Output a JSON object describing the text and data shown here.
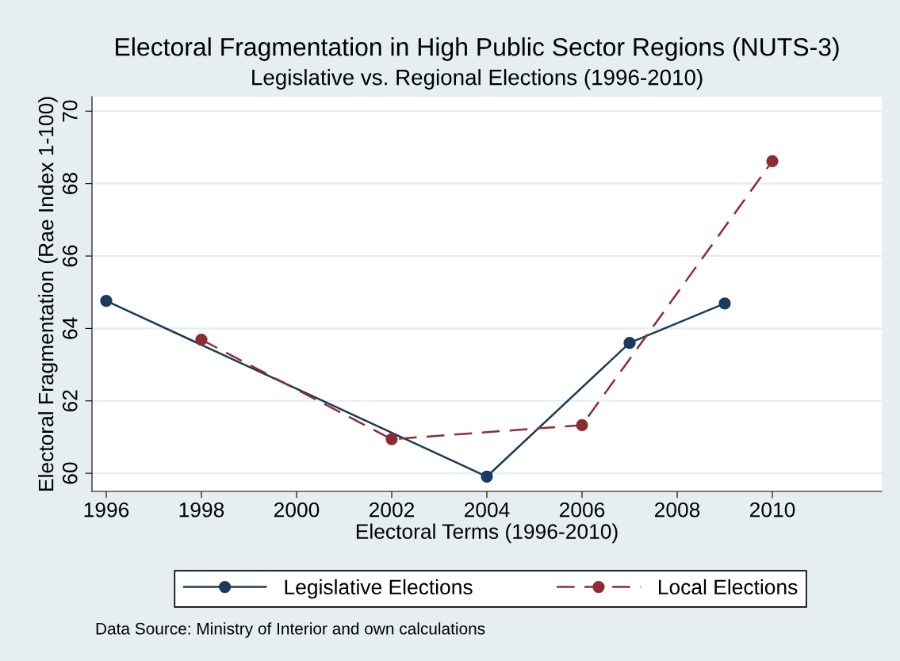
{
  "chart_data": {
    "type": "line",
    "title": "Electoral Fragmentation in High Public Sector Regions (NUTS-3)",
    "subtitle": "Legislative vs. Regional Elections (1996-2010)",
    "xlabel": "Electoral Terms (1996-2010)",
    "ylabel": "Electoral Fragmentation (Rae Index 1-100)",
    "series": [
      {
        "name": "Legislative Elections",
        "color": "#1a3a5e",
        "line_style": "solid",
        "x": [
          1996,
          2004,
          2007,
          2009
        ],
        "values": [
          64.76,
          59.91,
          63.6,
          64.69
        ]
      },
      {
        "name": "Local Elections",
        "color": "#8c2d33",
        "line_style": "dashed",
        "x": [
          1998,
          2002,
          2006,
          2010
        ],
        "values": [
          63.69,
          60.94,
          61.33,
          68.62
        ]
      }
    ],
    "xlim": [
      1995.7,
      2012.3
    ],
    "xticks": [
      1996,
      1998,
      2000,
      2002,
      2004,
      2006,
      2008,
      2010
    ],
    "ylim": [
      59.5,
      70.4
    ],
    "yticks": [
      60,
      62,
      64,
      66,
      68,
      70
    ],
    "grid": "y",
    "legend": "bottom",
    "marker": "circle",
    "annotations": [
      "Data Source: Ministry of Interior and own calculations"
    ]
  }
}
